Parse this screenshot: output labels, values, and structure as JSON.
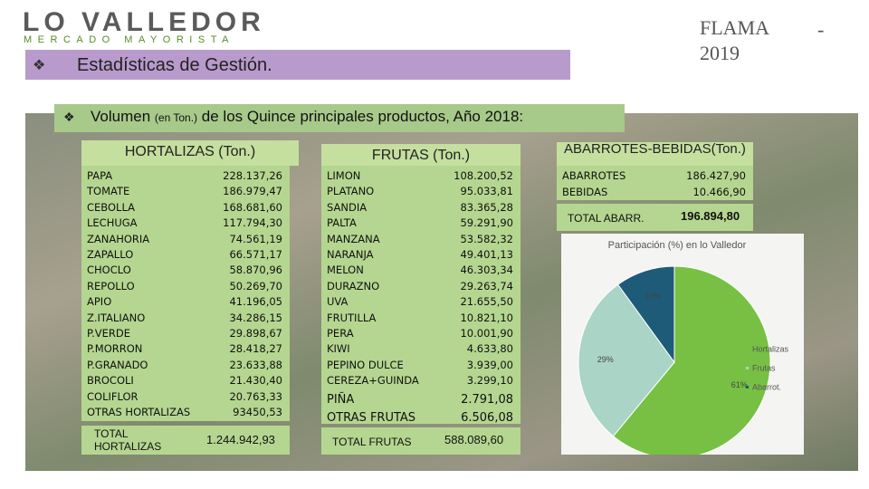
{
  "header": {
    "logo": "LO VALLEDOR",
    "logo_sub": "MERCADO MAYORISTA",
    "flama": "FLAMA",
    "year": "2019",
    "dash": "-"
  },
  "section_title": "Estadísticas de Gestión.",
  "subtitle": {
    "lead": "Volumen",
    "unit": "(en Ton.)",
    "rest": "de los Quince principales productos, Año 2018:"
  },
  "hortalizas": {
    "title": "HORTALIZAS (Ton.)",
    "rows": [
      [
        "PAPA",
        "228.137,26"
      ],
      [
        "TOMATE",
        "186.979,47"
      ],
      [
        "CEBOLLA",
        "168.681,60"
      ],
      [
        "LECHUGA",
        "117.794,30"
      ],
      [
        "ZANAHORIA",
        "74.561,19"
      ],
      [
        "ZAPALLO",
        "66.571,17"
      ],
      [
        "CHOCLO",
        "58.870,96"
      ],
      [
        "REPOLLO",
        "50.269,70"
      ],
      [
        "APIO",
        "41.196,05"
      ],
      [
        "Z.ITALIANO",
        "34.286,15"
      ],
      [
        "P.VERDE",
        "29.898,67"
      ],
      [
        "P.MORRON",
        "28.418,27"
      ],
      [
        "P.GRANADO",
        "23.633,88"
      ],
      [
        "BROCOLI",
        "21.430,40"
      ],
      [
        "COLIFLOR",
        "20.763,33"
      ],
      [
        "OTRAS HORTALIZAS",
        "93450,53"
      ]
    ],
    "total_label": "TOTAL HORTALIZAS",
    "total": "1.244.942,93"
  },
  "frutas": {
    "title": "FRUTAS (Ton.)",
    "rows": [
      [
        "LIMON",
        "108.200,52"
      ],
      [
        "PLATANO",
        "95.033,81"
      ],
      [
        "SANDIA",
        "83.365,28"
      ],
      [
        "PALTA",
        "59.291,90"
      ],
      [
        "MANZANA",
        "53.582,32"
      ],
      [
        "NARANJA",
        "49.401,13"
      ],
      [
        "MELON",
        "46.303,34"
      ],
      [
        "DURAZNO",
        "29.263,74"
      ],
      [
        "UVA",
        "21.655,50"
      ],
      [
        "FRUTILLA",
        "10.821,10"
      ],
      [
        "PERA",
        "10.001,90"
      ],
      [
        "KIWI",
        "4.633,80"
      ],
      [
        "PEPINO DULCE",
        "3.939,00"
      ],
      [
        "CEREZA+GUINDA",
        "3.299,10"
      ],
      [
        "PIÑA",
        "2.791,08"
      ],
      [
        "OTRAS FRUTAS",
        "6.506,08"
      ]
    ],
    "total_label": "TOTAL FRUTAS",
    "total": "588.089,60"
  },
  "abarrotes": {
    "title": "ABARROTES-BEBIDAS(Ton.)",
    "rows": [
      [
        "ABARROTES",
        "186.427,90"
      ],
      [
        "BEBIDAS",
        "10.466,90"
      ]
    ],
    "total_label": "TOTAL ABARR.",
    "total": "196.894,80"
  },
  "chart_data": {
    "type": "pie",
    "title": "Participación (%) en lo Valledor",
    "categories": [
      "Hortalizas",
      "Frutas",
      "Abarrot."
    ],
    "values": [
      61,
      29,
      10
    ],
    "value_labels": [
      "61%",
      "29%",
      "10%"
    ],
    "colors": [
      "#77c043",
      "#a9d4c6",
      "#1e5b78"
    ]
  }
}
